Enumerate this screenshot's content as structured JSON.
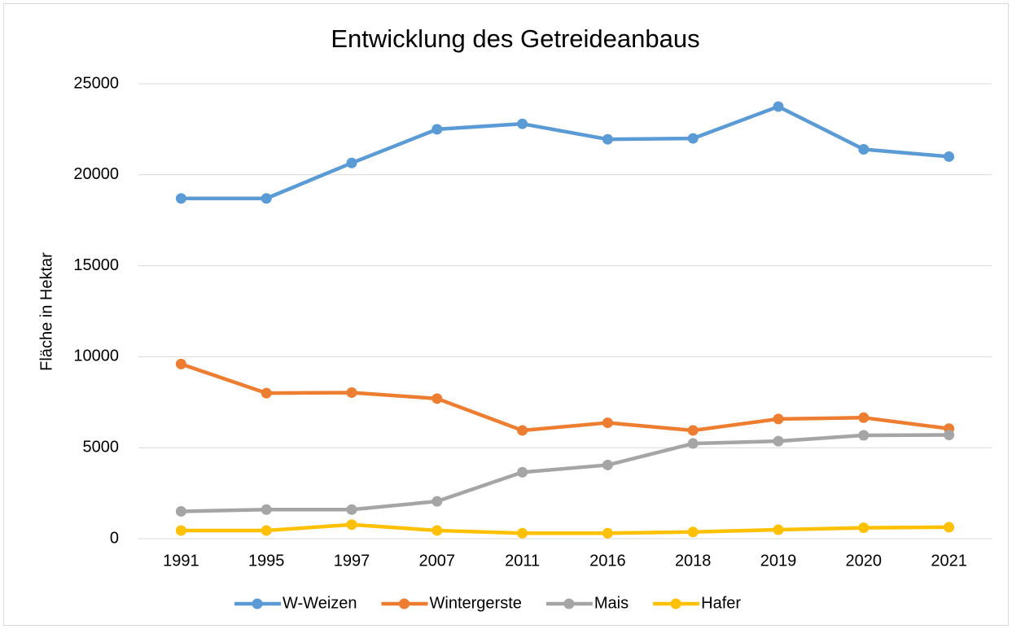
{
  "chart_data": {
    "type": "line",
    "title": "Entwicklung des Getreideanbaus",
    "y_label": "Fläche in Hektar",
    "categories": [
      "1991",
      "1995",
      "1997",
      "2007",
      "2011",
      "2016",
      "2018",
      "2019",
      "2020",
      "2021"
    ],
    "series": [
      {
        "name": "W-Weizen",
        "color": "#5b9bd5",
        "values": [
          18700,
          18700,
          20650,
          22500,
          22800,
          21950,
          22000,
          23750,
          21400,
          21000
        ]
      },
      {
        "name": "Wintergerste",
        "color": "#ed7d31",
        "values": [
          9600,
          8000,
          8030,
          7700,
          5950,
          6370,
          5950,
          6580,
          6650,
          6050
        ]
      },
      {
        "name": "Mais",
        "color": "#a5a5a5",
        "values": [
          1500,
          1600,
          1600,
          2050,
          3650,
          4050,
          5230,
          5360,
          5680,
          5700
        ]
      },
      {
        "name": "Hafer",
        "color": "#ffc000",
        "values": [
          450,
          450,
          770,
          450,
          300,
          300,
          370,
          490,
          600,
          630
        ]
      }
    ],
    "ylim": [
      0,
      25000
    ],
    "yticks": [
      0,
      5000,
      10000,
      15000,
      20000,
      25000
    ],
    "grid": true,
    "legend": "bottom"
  }
}
